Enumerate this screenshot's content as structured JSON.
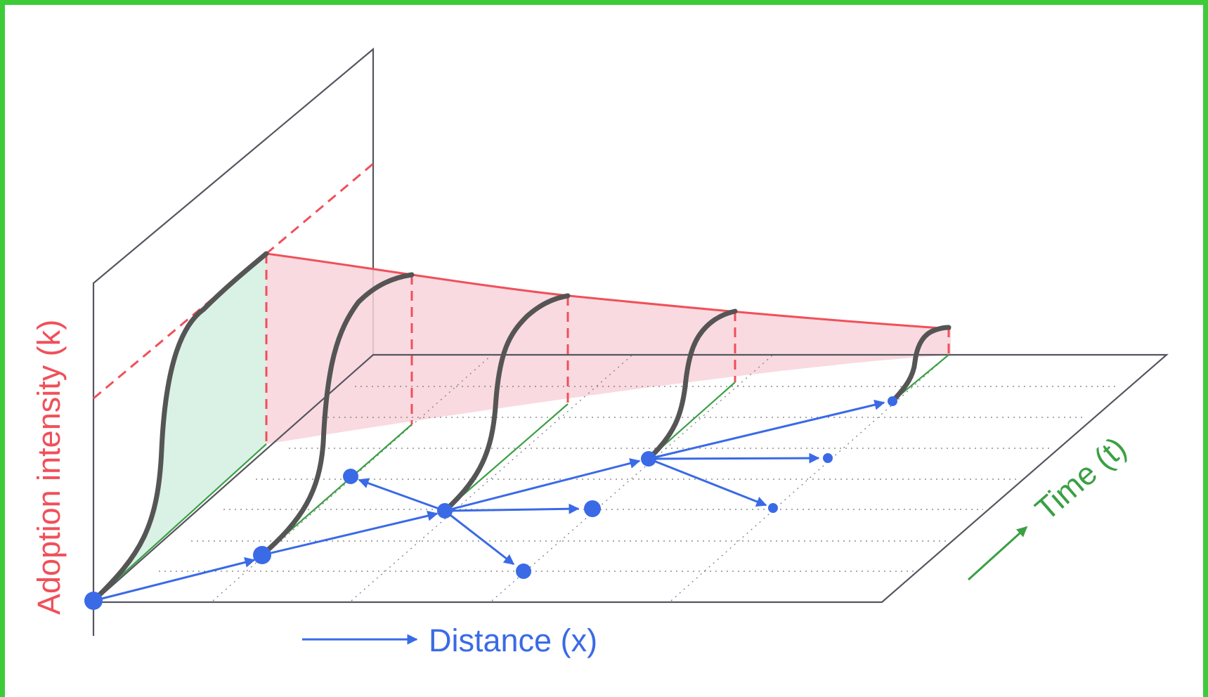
{
  "labels": {
    "y_axis": "Adoption intensity (k)",
    "x_axis": "Distance (x)",
    "time_axis": "Time (t)"
  },
  "colors": {
    "border": "#3ecb3a",
    "adoption": "#f0505a",
    "distance": "#3a6ae6",
    "time": "#3aa044",
    "curve": "#555555",
    "frame_lines": "#555560",
    "red_fill": "#f8d3da",
    "green_fill": "#d6f0e2"
  },
  "icons": {
    "x_arrow": "right-arrow-icon",
    "t_arrow": "diagonal-arrow-icon"
  }
}
